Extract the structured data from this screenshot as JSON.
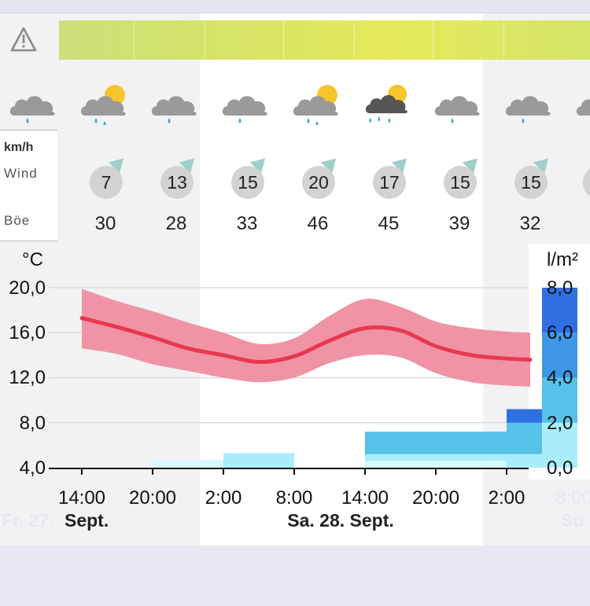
{
  "colors": {
    "temp_line": "#e8384f",
    "temp_band": "#ef8ea0",
    "precip_heavy": "#2f6fe2",
    "precip_mid": "#55c2e8",
    "precip_light": "#a9eefa",
    "precip_vlight": "#d8f8fd"
  },
  "alert_icon": "warning-triangle-icon",
  "weather_icons": [
    "cloud-rain-icon",
    "cloud-sun-rain-icon",
    "cloud-rain-icon",
    "cloud-rain-icon",
    "cloud-sun-rain-icon",
    "cloud-dark-sun-heavy-rain-icon",
    "cloud-rain-icon",
    "cloud-rain-icon"
  ],
  "wind": {
    "unit": "km/h",
    "wind_label": "Wind",
    "gust_label": "Böe",
    "speeds": [
      "7",
      "13",
      "15",
      "20",
      "17",
      "15",
      "15"
    ],
    "gusts": [
      "30",
      "28",
      "33",
      "46",
      "45",
      "39",
      "32"
    ]
  },
  "chart_data": {
    "type": "line",
    "left_axis": {
      "label": "°C",
      "ticks": [
        "20,0",
        "16,0",
        "12,0",
        "8,0",
        "4,0"
      ],
      "range": [
        4,
        20
      ]
    },
    "right_axis": {
      "label": "l/m²",
      "ticks": [
        "8,0",
        "6,0",
        "4,0",
        "2,0",
        "0,0"
      ],
      "range": [
        0,
        8
      ]
    },
    "x_ticks": [
      "14:00",
      "20:00",
      "2:00",
      "8:00",
      "14:00",
      "20:00",
      "2:00"
    ],
    "x_tick_faded": "8:00",
    "date_labels": [
      "Sept.",
      "Sa. 28. Sept."
    ],
    "date_faded_left": "Fr. 27.",
    "date_faded_right": "So.",
    "temperature": {
      "x": [
        "14:00",
        "17:00",
        "20:00",
        "23:00",
        "2:00",
        "5:00",
        "8:00",
        "11:00",
        "14:00",
        "17:00",
        "20:00",
        "23:00",
        "2:00",
        "4:00"
      ],
      "values": [
        17.3,
        16.5,
        15.6,
        14.6,
        14.0,
        13.4,
        13.9,
        15.3,
        16.4,
        16.2,
        14.8,
        14.0,
        13.7,
        13.6
      ],
      "band_upper": [
        19.9,
        18.8,
        17.9,
        16.9,
        16.0,
        15.0,
        15.5,
        17.5,
        19.0,
        18.3,
        17.0,
        16.4,
        16.1,
        16.0
      ],
      "band_lower": [
        14.6,
        14.1,
        13.2,
        12.6,
        12.0,
        11.6,
        12.0,
        13.3,
        14.0,
        13.8,
        12.4,
        11.6,
        11.3,
        11.2
      ]
    },
    "precipitation_lpm2": [
      {
        "from": "20:00",
        "to": "2:00",
        "value": 0.35
      },
      {
        "from": "2:00",
        "to": "8:00",
        "value": 0.65
      },
      {
        "from": "14:00",
        "to": "2:00",
        "value": 1.6
      },
      {
        "from": "2:00",
        "to": "5:00",
        "value": 2.6
      },
      {
        "from": "5:00",
        "to": "8:00",
        "value": 8.0
      }
    ]
  }
}
